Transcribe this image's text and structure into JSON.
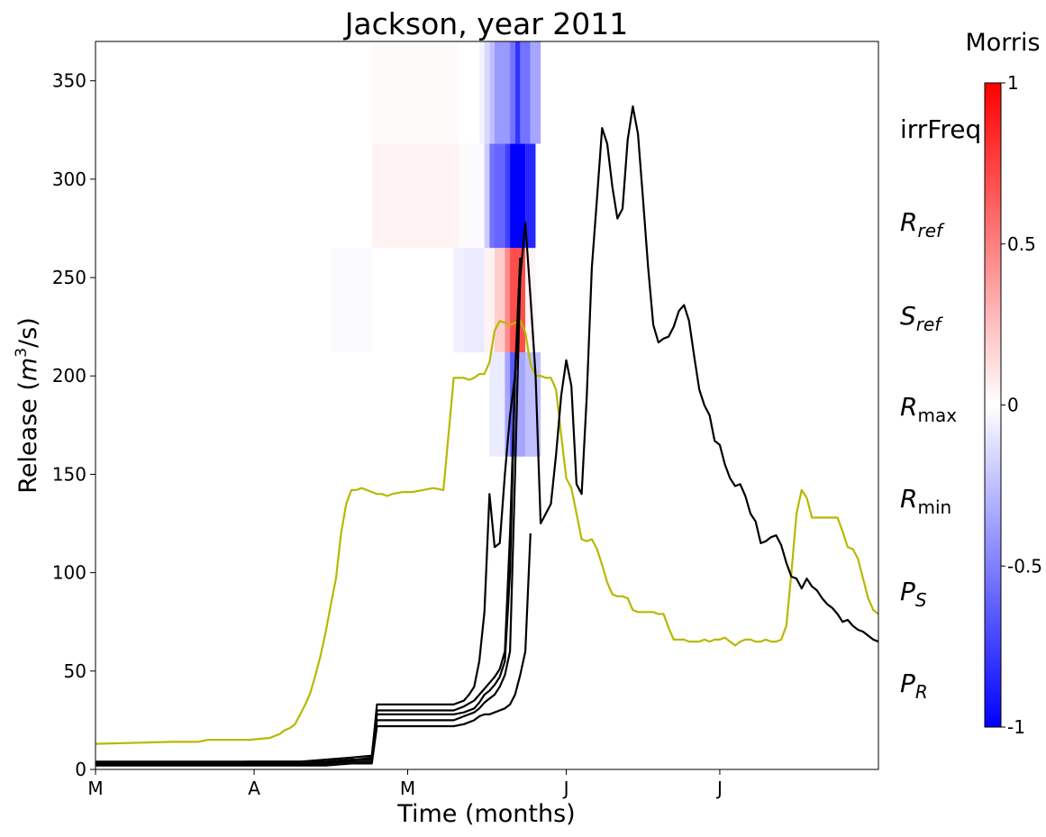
{
  "chart_data": {
    "type": "line",
    "title": "Jackson, year 2011",
    "xlabel": "Time (months)",
    "ylabel_main": "Release (",
    "ylabel_m": "m",
    "ylabel_exp": "3",
    "ylabel_tail": "/s)",
    "x_range_days": [
      0,
      153
    ],
    "ylim": [
      0,
      370
    ],
    "x_ticks": [
      {
        "day": 0,
        "label": "M"
      },
      {
        "day": 31,
        "label": "A"
      },
      {
        "day": 61,
        "label": "M"
      },
      {
        "day": 92,
        "label": "J"
      },
      {
        "day": 122,
        "label": "J"
      }
    ],
    "y_ticks": [
      0,
      50,
      100,
      150,
      200,
      250,
      300,
      350
    ],
    "params": [
      {
        "base": "irrFreq",
        "sub": "",
        "italic": false
      },
      {
        "base": "R",
        "sub": "ref",
        "italic": true
      },
      {
        "base": "S",
        "sub": "ref",
        "italic": true
      },
      {
        "base": "R",
        "sub": "max",
        "italic": true
      },
      {
        "base": "R",
        "sub": "min",
        "italic": true
      },
      {
        "base": "P",
        "sub": "S",
        "italic": true
      },
      {
        "base": "P",
        "sub": "R",
        "italic": true
      }
    ],
    "heatmap_rows": [
      {
        "ylim": [
          318,
          370
        ],
        "cells": [
          [
            54,
            71,
            0.02
          ],
          [
            71,
            75,
            0.0
          ],
          [
            75,
            76,
            -0.05
          ],
          [
            76,
            77,
            -0.15
          ],
          [
            77,
            78,
            -0.25
          ],
          [
            78,
            81,
            -0.4
          ],
          [
            81,
            82,
            -0.55
          ],
          [
            82,
            83,
            -0.8
          ],
          [
            83,
            85,
            -0.55
          ],
          [
            85,
            87,
            -0.35
          ]
        ]
      },
      {
        "ylim": [
          265,
          318
        ],
        "cells": [
          [
            54,
            71,
            0.05
          ],
          [
            71,
            73,
            0.02
          ],
          [
            73,
            76,
            -0.02
          ],
          [
            76,
            77,
            -0.2
          ],
          [
            77,
            78,
            -0.55
          ],
          [
            78,
            80,
            -0.6
          ],
          [
            80,
            81,
            -0.75
          ],
          [
            81,
            84,
            -1.0
          ],
          [
            84,
            86,
            -0.85
          ]
        ]
      },
      {
        "ylim": [
          212,
          265
        ],
        "cells": [
          [
            46,
            54,
            -0.02
          ],
          [
            54,
            70,
            0.0
          ],
          [
            70,
            72,
            -0.06
          ],
          [
            72,
            76,
            -0.08
          ],
          [
            76,
            78,
            0.05
          ],
          [
            78,
            80,
            0.2
          ],
          [
            80,
            81,
            0.45
          ],
          [
            81,
            84,
            0.7
          ],
          [
            84,
            86,
            0.05
          ]
        ]
      },
      {
        "ylim": [
          159,
          212
        ],
        "cells": [
          [
            77,
            80,
            -0.08
          ],
          [
            80,
            81,
            -0.35
          ],
          [
            81,
            82,
            -0.65
          ],
          [
            82,
            84,
            -0.35
          ],
          [
            84,
            87,
            -0.25
          ]
        ]
      }
    ],
    "series": [
      {
        "color": "#b8b800",
        "x": [
          0,
          15,
          20,
          22,
          24,
          26,
          30,
          34,
          36,
          37,
          38,
          39,
          40,
          41,
          42,
          43,
          44,
          45,
          46,
          47,
          48,
          49,
          50,
          51,
          52,
          53,
          54,
          55,
          56,
          57,
          58,
          60,
          62,
          64,
          66,
          68,
          70,
          71,
          72,
          73,
          74,
          75,
          76,
          77,
          78,
          79,
          80,
          81,
          82,
          83,
          84,
          85,
          86,
          87,
          88,
          89,
          90,
          91,
          92,
          93,
          94,
          95,
          96,
          97,
          98,
          99,
          100,
          101,
          102,
          103,
          104,
          105,
          106,
          107,
          108,
          109,
          110,
          111,
          112,
          113,
          114,
          115,
          116,
          117,
          118,
          119,
          120,
          121,
          122,
          123,
          124,
          125,
          126,
          127,
          128,
          129,
          130,
          131,
          132,
          133,
          134,
          135,
          136,
          137,
          138,
          139,
          140,
          141,
          142,
          143,
          144,
          145,
          146,
          147,
          148,
          149,
          150,
          151,
          152,
          153
        ],
        "y": [
          13,
          14,
          14,
          15,
          15,
          15,
          15,
          16,
          18,
          20,
          21,
          23,
          28,
          33,
          39,
          48,
          58,
          70,
          84,
          97,
          120,
          135,
          142,
          142,
          143,
          142,
          141,
          140,
          140,
          139,
          140,
          141,
          141,
          142,
          143,
          142,
          199,
          199,
          199,
          198,
          199,
          201,
          201,
          207,
          223,
          228,
          227,
          226,
          227,
          228,
          222,
          206,
          200,
          200,
          199,
          199,
          193,
          170,
          148,
          143,
          130,
          117,
          116,
          117,
          112,
          104,
          95,
          89,
          88,
          88,
          87,
          81,
          80,
          80,
          80,
          80,
          79,
          79,
          72,
          66,
          66,
          66,
          65,
          65,
          65,
          66,
          65,
          66,
          66,
          67,
          65,
          63,
          65,
          66,
          66,
          65,
          65,
          66,
          65,
          65,
          66,
          73,
          100,
          130,
          142,
          138,
          128,
          128,
          128,
          128,
          128,
          128,
          121,
          113,
          112,
          107,
          97,
          87,
          81,
          79
        ]
      },
      {
        "color": "#000000",
        "x": [
          0,
          10,
          20,
          30,
          40,
          45,
          50,
          54,
          55,
          60,
          65,
          70,
          72,
          74,
          75,
          76,
          77,
          78,
          79,
          80,
          81,
          82,
          83,
          84,
          85
        ],
        "y": [
          2,
          2,
          2,
          2,
          2,
          2,
          3,
          3,
          22,
          22,
          22,
          22,
          23,
          25,
          27,
          28,
          28,
          29,
          30,
          31,
          33,
          38,
          48,
          60,
          120
        ]
      },
      {
        "color": "#000000",
        "x": [
          0,
          10,
          20,
          30,
          40,
          45,
          50,
          54,
          55,
          60,
          65,
          70,
          72,
          74,
          75,
          76,
          77,
          78,
          79,
          80,
          81,
          82,
          83
        ],
        "y": [
          3,
          3,
          3,
          3,
          3,
          3,
          4,
          4,
          25,
          25,
          25,
          25,
          27,
          29,
          31,
          34,
          36,
          38,
          42,
          48,
          60,
          150,
          250
        ]
      },
      {
        "color": "#000000",
        "x": [
          0,
          10,
          20,
          30,
          40,
          45,
          50,
          54,
          55,
          60,
          65,
          70,
          72,
          74,
          75,
          76,
          77,
          78,
          79,
          80,
          81,
          82,
          83
        ],
        "y": [
          4,
          4,
          4,
          4,
          4,
          4,
          5,
          5,
          28,
          28,
          28,
          28,
          29,
          31,
          34,
          38,
          40,
          43,
          47,
          55,
          100,
          200,
          260
        ]
      },
      {
        "color": "#000000",
        "x": [
          0,
          10,
          20,
          30,
          40,
          45,
          50,
          54,
          55,
          60,
          65,
          70,
          72,
          74,
          75,
          76,
          77,
          78,
          79,
          80,
          81,
          82,
          83
        ],
        "y": [
          3,
          3,
          3,
          4,
          4,
          5,
          6,
          7,
          30,
          30,
          30,
          30,
          32,
          35,
          38,
          41,
          44,
          47,
          51,
          60,
          120,
          200,
          260
        ]
      },
      {
        "color": "#000000",
        "x": [
          0,
          10,
          20,
          30,
          40,
          45,
          48,
          51,
          54,
          55,
          60,
          65,
          70,
          72,
          73,
          74,
          75,
          76,
          77,
          78,
          79,
          80,
          81,
          82,
          83,
          84,
          85,
          86,
          87,
          88,
          89,
          90,
          91,
          92,
          93,
          94,
          95,
          96,
          97,
          98,
          99,
          100,
          101,
          102,
          103,
          104,
          105,
          106,
          107,
          108,
          109,
          110,
          111,
          112,
          113,
          114,
          115,
          116,
          117,
          118,
          119,
          120,
          121,
          122,
          123,
          124,
          125,
          126,
          127,
          128,
          129,
          130,
          131,
          132,
          133,
          134,
          135,
          136,
          137,
          138,
          139,
          140,
          141,
          142,
          143,
          144,
          145,
          146,
          147,
          148,
          149,
          150,
          151,
          152,
          153
        ],
        "y": [
          3,
          3,
          3,
          3,
          3,
          3,
          4,
          5,
          6,
          33,
          33,
          33,
          33,
          35,
          38,
          42,
          55,
          80,
          140,
          113,
          115,
          150,
          180,
          200,
          250,
          278,
          240,
          200,
          125,
          130,
          135,
          160,
          190,
          208,
          195,
          145,
          140,
          190,
          255,
          290,
          326,
          318,
          296,
          280,
          285,
          320,
          337,
          323,
          290,
          255,
          226,
          217,
          219,
          220,
          225,
          233,
          236,
          228,
          210,
          193,
          185,
          180,
          167,
          165,
          155,
          148,
          144,
          145,
          139,
          130,
          126,
          115,
          116,
          118,
          119,
          114,
          105,
          98,
          97,
          92,
          97,
          93,
          91,
          87,
          84,
          82,
          79,
          75,
          76,
          73,
          71,
          70,
          68,
          66,
          65
        ]
      }
    ],
    "colorbar": {
      "title": "Morris",
      "vmin": -1,
      "vmax": 1,
      "ticks": [
        "1",
        "0.5",
        "0",
        "-0.5",
        "-1"
      ],
      "tick_values": [
        1,
        0.5,
        0,
        -0.5,
        -1
      ]
    }
  }
}
